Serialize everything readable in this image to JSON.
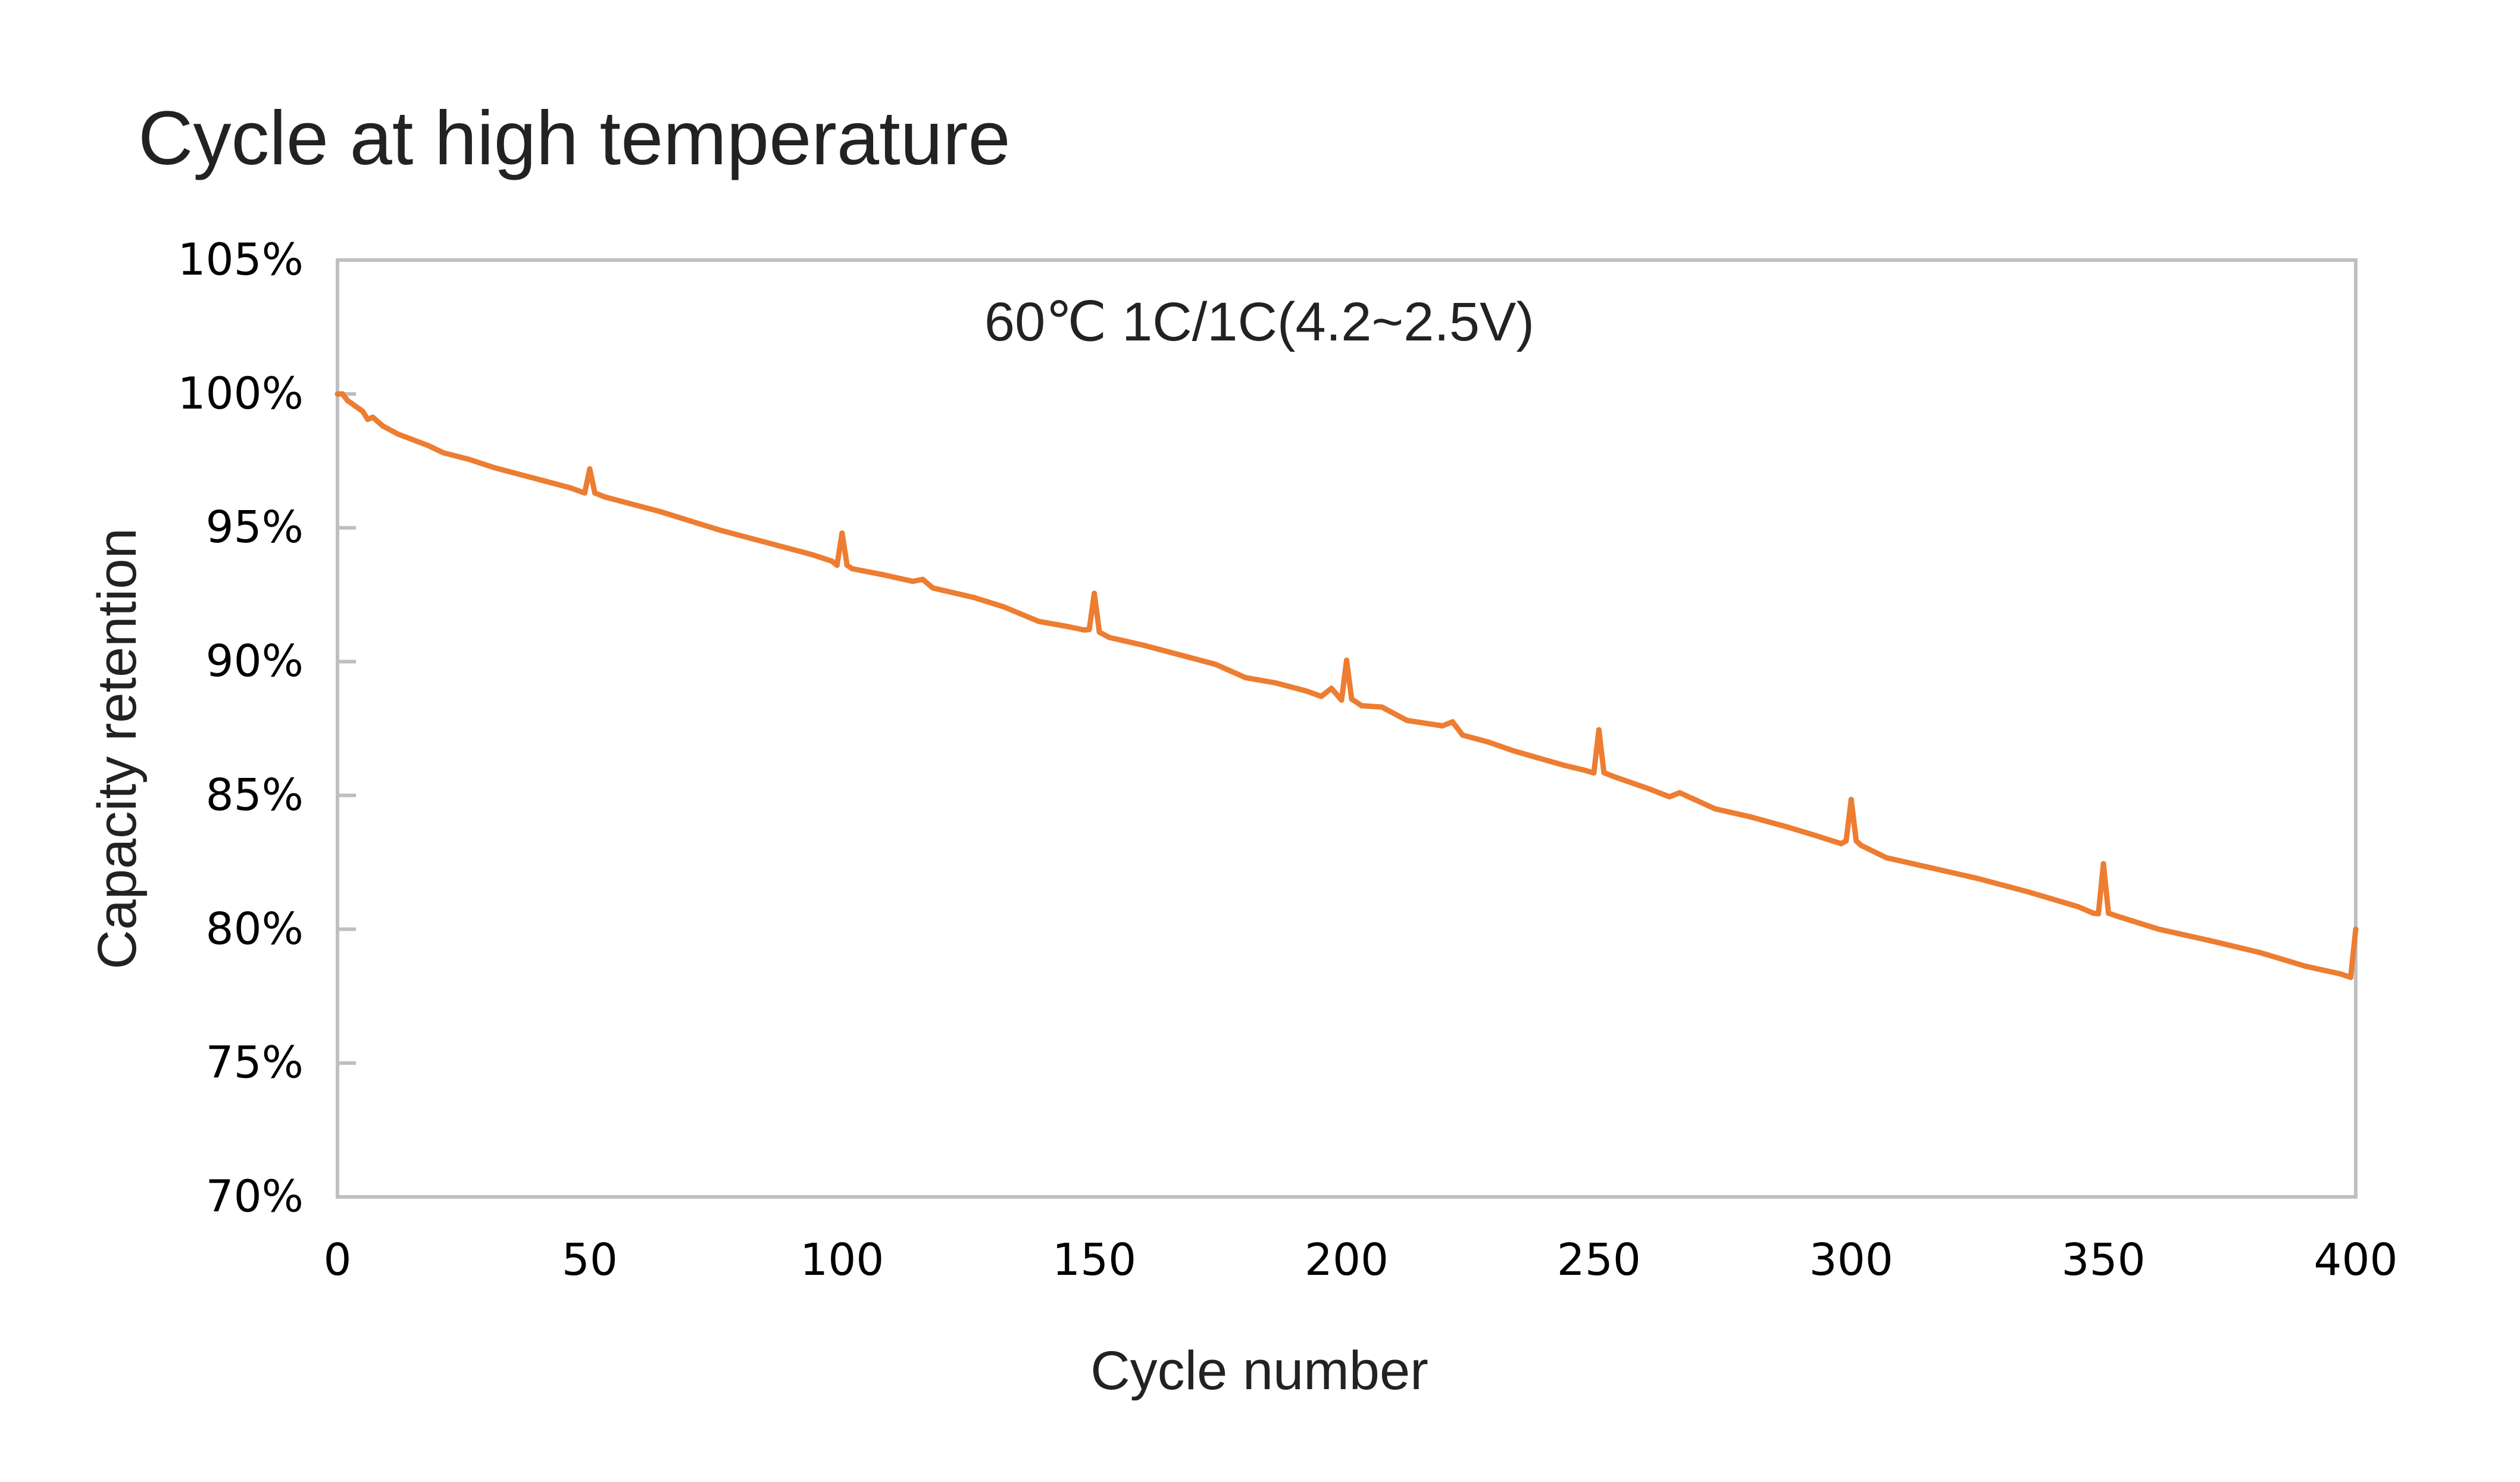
{
  "chart_data": {
    "type": "line",
    "title": "Cycle at high temperature",
    "annotation": "60℃ 1C/1C(4.2~2.5V)",
    "xlabel": "Cycle number",
    "ylabel": "Capacity retention",
    "xlim": [
      0,
      400
    ],
    "ylim": [
      70,
      105
    ],
    "x_ticks": [
      0,
      50,
      100,
      150,
      200,
      250,
      300,
      350,
      400
    ],
    "x_tick_labels": [
      "0",
      "50",
      "100",
      "150",
      "200",
      "250",
      "300",
      "350",
      "400"
    ],
    "y_ticks": [
      70,
      75,
      80,
      85,
      90,
      95,
      100,
      105
    ],
    "y_tick_labels": [
      "70%",
      "75%",
      "80%",
      "85%",
      "90%",
      "95%",
      "100%",
      "105%"
    ],
    "grid": false,
    "legend": "none",
    "series": [
      {
        "name": "Capacity retention",
        "color": "#ED7D31",
        "x": [
          0,
          1,
          2,
          5,
          6,
          7,
          9,
          12,
          18,
          21,
          26,
          31,
          36,
          41,
          46,
          49,
          50,
          51,
          53,
          58,
          64,
          70,
          76,
          82,
          88,
          94,
          98,
          99,
          100,
          101,
          102,
          108,
          114,
          116,
          118,
          126,
          132,
          139,
          145,
          148,
          149,
          150,
          151,
          153,
          160,
          168,
          174,
          180,
          186,
          192,
          195,
          197,
          199,
          200,
          201,
          203,
          207,
          212,
          219,
          221,
          223,
          228,
          233,
          238,
          243,
          247,
          249,
          250,
          251,
          253,
          260,
          264,
          266,
          273,
          280,
          287,
          293,
          298,
          299,
          300,
          301,
          302,
          307,
          315,
          325,
          335,
          345,
          348,
          349,
          350,
          351,
          353,
          361,
          371,
          381,
          390,
          397,
          399,
          400
        ],
        "y": [
          100.0,
          100.0,
          99.75,
          99.35,
          99.05,
          99.13,
          98.8,
          98.5,
          98.07,
          97.8,
          97.56,
          97.25,
          97.0,
          96.75,
          96.5,
          96.3,
          97.2,
          96.3,
          96.15,
          95.9,
          95.6,
          95.25,
          94.9,
          94.6,
          94.3,
          94.0,
          93.75,
          93.6,
          94.8,
          93.6,
          93.47,
          93.25,
          93.0,
          93.07,
          92.75,
          92.4,
          92.05,
          91.5,
          91.3,
          91.18,
          91.2,
          92.55,
          91.1,
          90.9,
          90.6,
          90.2,
          89.9,
          89.4,
          89.2,
          88.9,
          88.7,
          89.0,
          88.56,
          90.05,
          88.6,
          88.35,
          88.3,
          87.8,
          87.6,
          87.75,
          87.25,
          87.0,
          86.67,
          86.4,
          86.13,
          85.95,
          85.84,
          87.45,
          85.85,
          85.7,
          85.24,
          84.95,
          85.1,
          84.5,
          84.2,
          83.84,
          83.5,
          83.2,
          83.3,
          84.85,
          83.3,
          83.13,
          82.67,
          82.33,
          81.9,
          81.4,
          80.84,
          80.6,
          80.58,
          82.45,
          80.6,
          80.47,
          80.0,
          79.58,
          79.13,
          78.62,
          78.33,
          78.2,
          80.0
        ]
      }
    ]
  }
}
